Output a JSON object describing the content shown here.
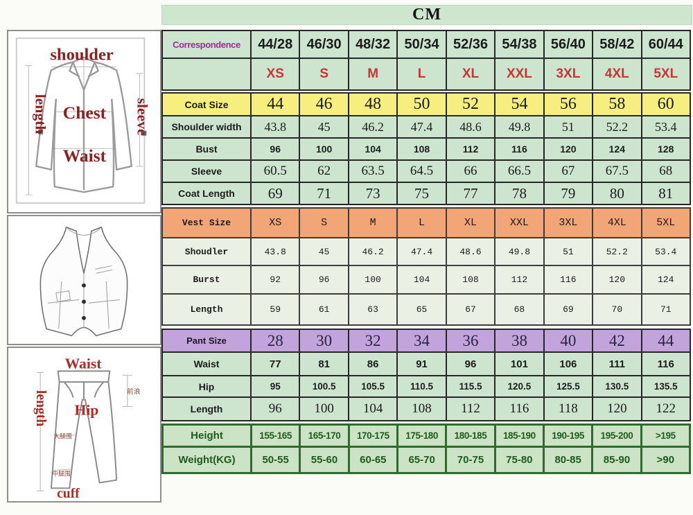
{
  "title": "CM",
  "chart_data": {
    "type": "table",
    "title": "CM",
    "sections": [
      {
        "id": "header",
        "rows": [
          {
            "label": "Correspondence",
            "values": [
              "44/28",
              "46/30",
              "48/32",
              "50/34",
              "52/36",
              "54/38",
              "56/40",
              "58/42",
              "60/44"
            ]
          },
          {
            "label": "",
            "values": [
              "XS",
              "S",
              "M",
              "L",
              "XL",
              "XXL",
              "3XL",
              "4XL",
              "5XL"
            ]
          }
        ]
      },
      {
        "id": "coat",
        "rows": [
          {
            "label": "Coat Size",
            "values": [
              "44",
              "46",
              "48",
              "50",
              "52",
              "54",
              "56",
              "58",
              "60"
            ]
          },
          {
            "label": "Shoulder width",
            "values": [
              "43.8",
              "45",
              "46.2",
              "47.4",
              "48.6",
              "49.8",
              "51",
              "52.2",
              "53.4"
            ]
          },
          {
            "label": "Bust",
            "values": [
              "96",
              "100",
              "104",
              "108",
              "112",
              "116",
              "120",
              "124",
              "128"
            ]
          },
          {
            "label": "Sleeve",
            "values": [
              "60.5",
              "62",
              "63.5",
              "64.5",
              "66",
              "66.5",
              "67",
              "67.5",
              "68"
            ]
          },
          {
            "label": "Coat Length",
            "values": [
              "69",
              "71",
              "73",
              "75",
              "77",
              "78",
              "79",
              "80",
              "81"
            ]
          }
        ]
      },
      {
        "id": "vest",
        "rows": [
          {
            "label": "Vest Size",
            "values": [
              "XS",
              "S",
              "M",
              "L",
              "XL",
              "XXL",
              "3XL",
              "4XL",
              "5XL"
            ]
          },
          {
            "label": "Shoudler",
            "values": [
              "43.8",
              "45",
              "46.2",
              "47.4",
              "48.6",
              "49.8",
              "51",
              "52.2",
              "53.4"
            ]
          },
          {
            "label": "Burst",
            "values": [
              "92",
              "96",
              "100",
              "104",
              "108",
              "112",
              "116",
              "120",
              "124"
            ]
          },
          {
            "label": "Length",
            "values": [
              "59",
              "61",
              "63",
              "65",
              "67",
              "68",
              "69",
              "70",
              "71"
            ]
          }
        ]
      },
      {
        "id": "pant",
        "rows": [
          {
            "label": "Pant Size",
            "values": [
              "28",
              "30",
              "32",
              "34",
              "36",
              "38",
              "40",
              "42",
              "44"
            ]
          },
          {
            "label": "Waist",
            "values": [
              "77",
              "81",
              "86",
              "91",
              "96",
              "101",
              "106",
              "111",
              "116"
            ]
          },
          {
            "label": "Hip",
            "values": [
              "95",
              "100.5",
              "105.5",
              "110.5",
              "115.5",
              "120.5",
              "125.5",
              "130.5",
              "135.5"
            ]
          },
          {
            "label": "Length",
            "values": [
              "96",
              "100",
              "104",
              "108",
              "112",
              "116",
              "118",
              "120",
              "122"
            ]
          }
        ]
      },
      {
        "id": "body",
        "rows": [
          {
            "label": "Height",
            "values": [
              "155-165",
              "165-170",
              "170-175",
              "175-180",
              "180-185",
              "185-190",
              "190-195",
              "195-200",
              ">195"
            ]
          },
          {
            "label": "Weight(KG)",
            "values": [
              "50-55",
              "55-60",
              "60-65",
              "65-70",
              "70-75",
              "75-80",
              "80-85",
              "85-90",
              ">90"
            ]
          }
        ]
      }
    ]
  },
  "diagrams": {
    "jacket": {
      "shoulder": "shoulder",
      "length": "length",
      "sleeve": "sleeve",
      "chest": "Chest",
      "waist": "Waist"
    },
    "pants": {
      "waist": "Waist",
      "length": "length",
      "hip": "Hip",
      "cuff": "cuff",
      "rise_cn": "前浪",
      "thigh_cn": "大腿围",
      "knee_cn": "中腿围"
    }
  },
  "colors": {
    "table_green": "#cde4cf",
    "vest_pale_green": "#eaf1e4",
    "coat_yellow": "#f6ee7e",
    "vest_orange": "#f2a678",
    "pant_purple": "#c2a3dc",
    "size_red": "#c93434",
    "correspondence_purple": "#9c2d9c",
    "body_text_green": "#1d5a1d",
    "sketch_label_red": "#8e2020"
  }
}
